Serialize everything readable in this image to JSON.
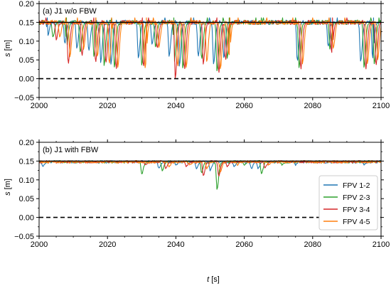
{
  "figure": {
    "xlabel_italic": "t",
    "xlabel_unit": " [s]",
    "ylabel_italic": "s",
    "ylabel_unit": " [m]"
  },
  "chart_data": [
    {
      "type": "line",
      "title": "(a) J1 w/o FBW",
      "xlim": [
        2000,
        2100
      ],
      "ylim": [
        -0.05,
        0.2
      ],
      "xticks": [
        2000,
        2020,
        2040,
        2060,
        2080,
        2100
      ],
      "yticks": [
        -0.05,
        0.0,
        0.05,
        0.1,
        0.15,
        0.2
      ],
      "ytick_labels": [
        "−0.05",
        "0.00",
        "0.05",
        "0.10",
        "0.15",
        "0.20"
      ],
      "reference_lines": [
        {
          "y": 0.15,
          "style": "solid",
          "color": "#000000"
        },
        {
          "y": 0.0,
          "style": "dashed",
          "color": "#000000"
        }
      ],
      "baseline": 0.15,
      "series": [
        {
          "name": "FPV 1-2",
          "color": "#1f77b4",
          "dips": [
            [
              2002.5,
              0.115
            ],
            [
              2007.5,
              0.095
            ],
            [
              2011,
              0.08
            ],
            [
              2014.5,
              0.075
            ],
            [
              2018,
              0.045
            ],
            [
              2021,
              0.04
            ],
            [
              2029,
              0.055
            ],
            [
              2033,
              0.09
            ],
            [
              2038,
              0.06
            ],
            [
              2041,
              0.035
            ],
            [
              2046.5,
              0.06
            ],
            [
              2051,
              0.04
            ],
            [
              2054,
              0.055
            ],
            [
              2075.5,
              0.045
            ],
            [
              2084.5,
              0.085
            ],
            [
              2094,
              0.045
            ],
            [
              2097.5,
              0.055
            ]
          ]
        },
        {
          "name": "FPV 2-3",
          "color": "#2ca02c",
          "dips": [
            [
              2004,
              0.11
            ],
            [
              2008,
              0.085
            ],
            [
              2012,
              0.07
            ],
            [
              2016,
              0.06
            ],
            [
              2019,
              0.035
            ],
            [
              2022,
              0.03
            ],
            [
              2030,
              0.035
            ],
            [
              2034,
              0.085
            ],
            [
              2039.5,
              0.045
            ],
            [
              2042,
              0.03
            ],
            [
              2047.5,
              0.05
            ],
            [
              2052,
              0.02
            ],
            [
              2055,
              0.055
            ],
            [
              2076,
              0.03
            ],
            [
              2085,
              0.08
            ],
            [
              2095,
              0.03
            ],
            [
              2098,
              0.04
            ]
          ]
        },
        {
          "name": "FPV 3-4",
          "color": "#d62728",
          "dips": [
            [
              2005,
              0.105
            ],
            [
              2008.5,
              0.04
            ],
            [
              2012.5,
              0.06
            ],
            [
              2016.5,
              0.045
            ],
            [
              2019.5,
              0.04
            ],
            [
              2022.5,
              0.025
            ],
            [
              2030.5,
              0.03
            ],
            [
              2034.5,
              0.08
            ],
            [
              2039.8,
              0.0
            ],
            [
              2042.5,
              0.025
            ],
            [
              2048,
              0.04
            ],
            [
              2052.5,
              0.015
            ],
            [
              2054.5,
              0.05
            ],
            [
              2076.5,
              0.025
            ],
            [
              2085.5,
              0.07
            ],
            [
              2095.5,
              0.025
            ],
            [
              2098.5,
              0.035
            ]
          ]
        },
        {
          "name": "FPV 4-5",
          "color": "#ff7f0e",
          "dips": [
            [
              2006,
              0.11
            ],
            [
              2009,
              0.06
            ],
            [
              2013,
              0.08
            ],
            [
              2017,
              0.06
            ],
            [
              2020.5,
              0.04
            ],
            [
              2023,
              0.03
            ],
            [
              2031,
              0.03
            ],
            [
              2035,
              0.085
            ],
            [
              2040.5,
              0.03
            ],
            [
              2043,
              0.03
            ],
            [
              2049,
              0.045
            ],
            [
              2053,
              0.025
            ],
            [
              2055.5,
              0.06
            ],
            [
              2077,
              0.04
            ],
            [
              2086,
              0.08
            ],
            [
              2096,
              0.04
            ],
            [
              2099,
              0.05
            ]
          ]
        }
      ]
    },
    {
      "type": "line",
      "title": "(b) J1 with FBW",
      "xlim": [
        2000,
        2100
      ],
      "ylim": [
        -0.05,
        0.2
      ],
      "xticks": [
        2000,
        2020,
        2040,
        2060,
        2080,
        2100
      ],
      "yticks": [
        -0.05,
        0.0,
        0.05,
        0.1,
        0.15,
        0.2
      ],
      "ytick_labels": [
        "−0.05",
        "0.00",
        "0.05",
        "0.10",
        "0.15",
        "0.20"
      ],
      "reference_lines": [
        {
          "y": 0.15,
          "style": "solid",
          "color": "#000000"
        },
        {
          "y": 0.0,
          "style": "dashed",
          "color": "#000000"
        }
      ],
      "baseline": 0.148,
      "legend": {
        "placement": "right"
      },
      "series": [
        {
          "name": "FPV 1-2",
          "color": "#1f77b4",
          "dips": [
            [
              2001,
              0.135
            ],
            [
              2035,
              0.13
            ],
            [
              2040,
              0.14
            ],
            [
              2046,
              0.13
            ],
            [
              2050,
              0.125
            ],
            [
              2057,
              0.135
            ],
            [
              2062,
              0.13
            ],
            [
              2064,
              0.13
            ],
            [
              2075,
              0.14
            ],
            [
              2095,
              0.14
            ]
          ]
        },
        {
          "name": "FPV 2-3",
          "color": "#2ca02c",
          "dips": [
            [
              2030,
              0.115
            ],
            [
              2036,
              0.125
            ],
            [
              2047.5,
              0.12
            ],
            [
              2052,
              0.075
            ],
            [
              2060,
              0.14
            ],
            [
              2065,
              0.115
            ],
            [
              2071,
              0.14
            ]
          ]
        },
        {
          "name": "FPV 3-4",
          "color": "#d62728",
          "dips": [
            [
              2031,
              0.14
            ],
            [
              2037,
              0.13
            ],
            [
              2043,
              0.135
            ],
            [
              2048,
              0.11
            ],
            [
              2052.5,
              0.11
            ],
            [
              2055,
              0.135
            ],
            [
              2066,
              0.13
            ]
          ]
        },
        {
          "name": "FPV 4-5",
          "color": "#ff7f0e",
          "dips": [
            [
              2032,
              0.145
            ],
            [
              2038,
              0.135
            ],
            [
              2044,
              0.14
            ],
            [
              2049,
              0.13
            ],
            [
              2053,
              0.12
            ],
            [
              2058,
              0.14
            ],
            [
              2067,
              0.14
            ]
          ]
        }
      ]
    }
  ]
}
